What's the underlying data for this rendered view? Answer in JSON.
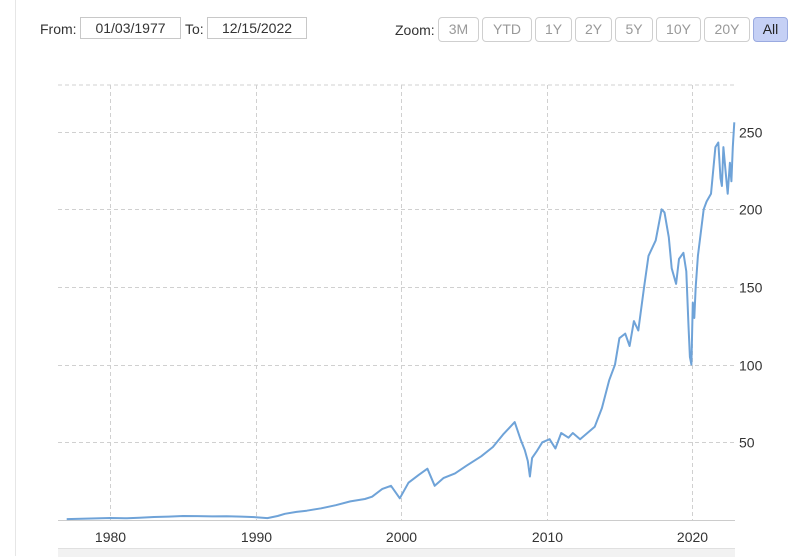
{
  "toolbar": {
    "from_label": "From:",
    "from_value": "01/03/1977",
    "to_label": "To:",
    "to_value": "12/15/2022",
    "zoom_label": "Zoom:",
    "zoom_buttons": [
      "3M",
      "YTD",
      "1Y",
      "2Y",
      "5Y",
      "10Y",
      "20Y",
      "All"
    ],
    "active_zoom": "All"
  },
  "colors": {
    "line": "#6fa3d8",
    "grid": "#d0d0d0",
    "active_button_bg": "#c5d0f5"
  },
  "chart_data": {
    "type": "line",
    "title": "",
    "xlabel": "",
    "ylabel": "",
    "xlim": [
      1976.4,
      2022.95
    ],
    "ylim": [
      0,
      280
    ],
    "x_ticks": [
      1980,
      1990,
      2000,
      2010,
      2020
    ],
    "y_ticks": [
      50,
      100,
      150,
      200,
      250
    ],
    "grid": true,
    "y_axis_side": "right",
    "series": [
      {
        "x": [
          1977.0,
          1978.0,
          1979.0,
          1980.0,
          1981.0,
          1982.0,
          1983.0,
          1984.0,
          1985.0,
          1986.0,
          1987.0,
          1988.0,
          1989.0,
          1990.0,
          1990.8,
          1991.5,
          1992.0,
          1992.8,
          1993.5,
          1994.5,
          1995.5,
          1996.5,
          1997.5,
          1998.0,
          1998.7,
          1999.3,
          1999.9,
          2000.5,
          2001.2,
          2001.8,
          2002.3,
          2002.9,
          2003.7,
          2004.5,
          2005.5,
          2006.3,
          2007.0,
          2007.5,
          2007.8,
          2008.2,
          2008.5,
          2008.7,
          2008.85,
          2009.0,
          2009.3,
          2009.7,
          2010.2,
          2010.6,
          2011.0,
          2011.5,
          2011.8,
          2012.3,
          2012.8,
          2013.3,
          2013.8,
          2014.3,
          2014.7,
          2015.0,
          2015.4,
          2015.7,
          2016.0,
          2016.3,
          2016.7,
          2017.0,
          2017.5,
          2017.9,
          2018.1,
          2018.4,
          2018.6,
          2018.9,
          2019.1,
          2019.4,
          2019.6,
          2019.75,
          2019.85,
          2019.95,
          2020.05,
          2020.15,
          2020.25,
          2020.4,
          2020.6,
          2020.8,
          2021.0,
          2021.3,
          2021.6,
          2021.8,
          2021.95,
          2022.05,
          2022.15,
          2022.3,
          2022.45,
          2022.6,
          2022.7,
          2022.8,
          2022.9
        ],
        "values": [
          0.6,
          0.8,
          1.0,
          1.3,
          1.1,
          1.4,
          1.9,
          2.2,
          2.6,
          2.5,
          2.3,
          2.4,
          2.2,
          1.8,
          1.2,
          2.6,
          4.0,
          5.2,
          6.0,
          7.5,
          9.5,
          12.0,
          13.5,
          15.0,
          20.0,
          22.0,
          14.0,
          24.0,
          29.0,
          33.0,
          22.0,
          27.0,
          30.0,
          35.0,
          41.0,
          47.0,
          55.0,
          60.0,
          63.0,
          52.0,
          45.0,
          38.0,
          28.0,
          40.0,
          44.0,
          50.0,
          52.0,
          46.0,
          56.0,
          53.0,
          56.0,
          52.0,
          56.0,
          60.0,
          72.0,
          90.0,
          100.0,
          117.0,
          120.0,
          112.0,
          128.0,
          122.0,
          150.0,
          170.0,
          180.0,
          200.0,
          198.0,
          182.0,
          162.0,
          152.0,
          168.0,
          172.0,
          160.0,
          125.0,
          105.0,
          100.0,
          140.0,
          130.0,
          150.0,
          170.0,
          185.0,
          200.0,
          205.0,
          210.0,
          240.0,
          243.0,
          220.0,
          215.0,
          240.0,
          225.0,
          210.0,
          230.0,
          218.0,
          240.0,
          256.0
        ]
      }
    ]
  }
}
